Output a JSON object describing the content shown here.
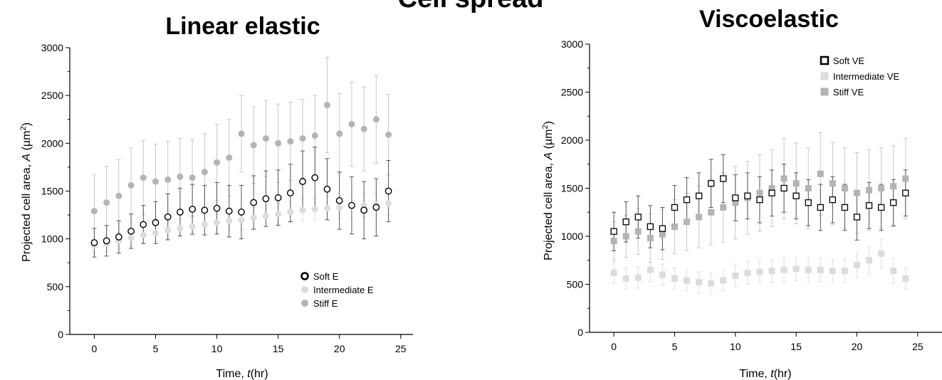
{
  "figure": {
    "title": "Cell spread"
  },
  "colors": {
    "soft": "#000000",
    "intermediate": "#dcdcdc",
    "stiff": "#b4b4b4",
    "errorbar_soft": "#555555",
    "errorbar_intermediate": "#e0e0e0",
    "errorbar_stiff": "#c8c8c8"
  },
  "chart_data": [
    {
      "type": "scatter",
      "title": "Linear elastic",
      "xlabel_prefix": "Time, ",
      "xlabel_var": "t",
      "xlabel_suffix": "(hr)",
      "ylabel_prefix": "Projected cell area, ",
      "ylabel_var": "A",
      "ylabel_suffix": " (µm",
      "ylabel_exp": "2",
      "ylabel_close": ")",
      "xlim": [
        -2,
        26
      ],
      "ylim": [
        0,
        3000
      ],
      "xticks": [
        0,
        5,
        10,
        15,
        20,
        25
      ],
      "yticks": [
        0,
        500,
        1000,
        1500,
        2000,
        2500,
        3000
      ],
      "marker": "circle",
      "legend_position": "bottom-right",
      "series": [
        {
          "name": "Soft E",
          "key": "soft",
          "x": [
            0,
            1,
            2,
            3,
            4,
            5,
            6,
            7,
            8,
            9,
            10,
            11,
            12,
            13,
            14,
            15,
            16,
            17,
            18,
            19,
            20,
            21,
            22,
            23,
            24
          ],
          "y": [
            960,
            980,
            1020,
            1080,
            1150,
            1170,
            1230,
            1280,
            1310,
            1300,
            1320,
            1290,
            1280,
            1380,
            1420,
            1430,
            1480,
            1600,
            1640,
            1520,
            1400,
            1350,
            1300,
            1330,
            1500
          ],
          "err": [
            150,
            160,
            170,
            180,
            200,
            220,
            240,
            250,
            260,
            260,
            270,
            270,
            280,
            280,
            290,
            290,
            300,
            320,
            320,
            320,
            300,
            300,
            300,
            300,
            320
          ]
        },
        {
          "name": "Intermediate E",
          "key": "intermediate",
          "x": [
            0,
            1,
            2,
            3,
            4,
            5,
            6,
            7,
            8,
            9,
            10,
            11,
            12,
            13,
            14,
            15,
            16,
            17,
            18,
            19,
            20,
            21,
            22,
            23,
            24
          ],
          "y": [
            930,
            950,
            980,
            1010,
            1040,
            1060,
            1090,
            1110,
            1130,
            1150,
            1170,
            1190,
            1200,
            1220,
            1240,
            1260,
            1280,
            1300,
            1310,
            1320,
            1330,
            1340,
            1350,
            1360,
            1370
          ],
          "err": [
            80,
            80,
            80,
            90,
            90,
            90,
            90,
            100,
            100,
            100,
            100,
            100,
            100,
            110,
            110,
            110,
            110,
            110,
            120,
            120,
            120,
            120,
            120,
            120,
            120
          ]
        },
        {
          "name": "Stiff E",
          "key": "stiff",
          "x": [
            0,
            1,
            2,
            3,
            4,
            5,
            6,
            7,
            8,
            9,
            10,
            11,
            12,
            13,
            14,
            15,
            16,
            17,
            18,
            19,
            20,
            21,
            22,
            23,
            24
          ],
          "y": [
            1290,
            1380,
            1450,
            1560,
            1640,
            1600,
            1620,
            1650,
            1640,
            1700,
            1800,
            1850,
            2100,
            1980,
            2050,
            2000,
            2020,
            2050,
            2080,
            2400,
            2100,
            2200,
            2150,
            2250,
            2090
          ],
          "err": [
            380,
            380,
            380,
            390,
            390,
            390,
            400,
            400,
            400,
            400,
            400,
            400,
            400,
            400,
            400,
            410,
            410,
            410,
            420,
            500,
            420,
            440,
            440,
            460,
            420
          ]
        }
      ]
    },
    {
      "type": "scatter",
      "title": "Viscoelastic",
      "xlabel_prefix": "Time, ",
      "xlabel_var": "t",
      "xlabel_suffix": "(hr)",
      "ylabel_prefix": "Projected cell area, ",
      "ylabel_var": "A",
      "ylabel_suffix": " (µm",
      "ylabel_exp": "2",
      "ylabel_close": ")",
      "xlim": [
        -2,
        27
      ],
      "ylim": [
        0,
        3000
      ],
      "xticks": [
        0,
        5,
        10,
        15,
        20,
        25
      ],
      "yticks": [
        0,
        500,
        1000,
        1500,
        2000,
        2500,
        3000
      ],
      "marker": "square",
      "legend_position": "top-right",
      "series": [
        {
          "name": "Soft VE",
          "key": "soft",
          "x": [
            0,
            1,
            2,
            3,
            4,
            5,
            6,
            7,
            8,
            9,
            10,
            11,
            12,
            13,
            14,
            15,
            16,
            17,
            18,
            19,
            20,
            21,
            22,
            23,
            24
          ],
          "y": [
            1050,
            1150,
            1200,
            1100,
            1080,
            1300,
            1380,
            1420,
            1550,
            1600,
            1400,
            1420,
            1380,
            1450,
            1500,
            1420,
            1350,
            1300,
            1380,
            1300,
            1200,
            1320,
            1300,
            1350,
            1450
          ],
          "err": [
            200,
            210,
            220,
            220,
            220,
            230,
            230,
            240,
            250,
            250,
            240,
            240,
            240,
            240,
            250,
            240,
            240,
            240,
            240,
            240,
            240,
            240,
            240,
            240,
            240
          ]
        },
        {
          "name": "Intermediate VE",
          "key": "intermediate",
          "x": [
            0,
            1,
            2,
            3,
            4,
            5,
            6,
            7,
            8,
            9,
            10,
            11,
            12,
            13,
            14,
            15,
            16,
            17,
            18,
            19,
            20,
            21,
            22,
            23,
            24
          ],
          "y": [
            620,
            560,
            570,
            650,
            600,
            560,
            540,
            520,
            510,
            540,
            590,
            620,
            630,
            640,
            650,
            660,
            650,
            650,
            640,
            640,
            700,
            750,
            820,
            640,
            560
          ],
          "err": [
            110,
            110,
            110,
            120,
            110,
            110,
            110,
            110,
            110,
            110,
            120,
            120,
            120,
            120,
            120,
            120,
            120,
            120,
            120,
            120,
            130,
            140,
            150,
            130,
            110
          ]
        },
        {
          "name": "Stiff VE",
          "key": "stiff",
          "x": [
            0,
            1,
            2,
            3,
            4,
            5,
            6,
            7,
            8,
            9,
            10,
            11,
            12,
            13,
            14,
            15,
            16,
            17,
            18,
            19,
            20,
            21,
            22,
            23,
            24
          ],
          "y": [
            950,
            1000,
            1050,
            980,
            1020,
            1100,
            1150,
            1200,
            1250,
            1300,
            1350,
            1400,
            1450,
            1500,
            1600,
            1550,
            1500,
            1650,
            1550,
            1500,
            1450,
            1480,
            1500,
            1520,
            1600
          ],
          "err": [
            200,
            220,
            240,
            250,
            260,
            280,
            300,
            320,
            340,
            360,
            380,
            380,
            400,
            400,
            420,
            420,
            420,
            430,
            430,
            420,
            420,
            420,
            420,
            420,
            420
          ]
        }
      ]
    }
  ]
}
